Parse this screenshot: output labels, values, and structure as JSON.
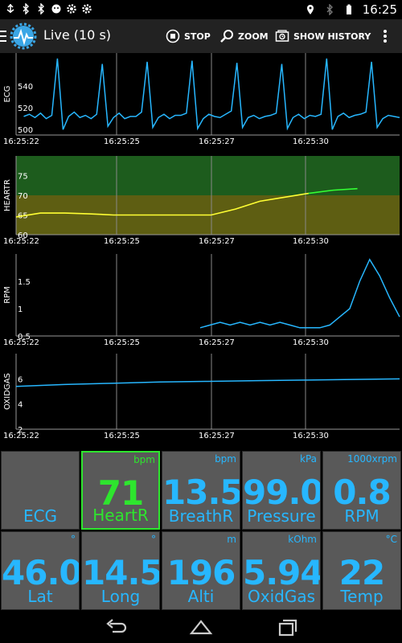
{
  "statusbar": {
    "time": "16:25",
    "icons": [
      "usb-icon",
      "bluetooth-icon",
      "bluetooth-icon",
      "android-icon",
      "gear-icon",
      "gear-icon"
    ],
    "right_icons": [
      "location-icon",
      "bluetooth-icon",
      "battery-icon"
    ]
  },
  "actionbar": {
    "title": "Live (10 s)",
    "stop_label": "STOP",
    "zoom_label": "ZOOM",
    "history_label": "SHOW HISTORY"
  },
  "colors": {
    "trace_blue": "#27b7ff",
    "trace_yellow": "#ffff33",
    "trace_green": "#33ff33",
    "zone_green": "#1d5c1d",
    "zone_olive": "#5e5e12",
    "tile_bg": "#595959",
    "tile_text": "#27b7ff",
    "tile_active": "#2ee52e"
  },
  "chart_data": [
    {
      "type": "line",
      "ylabel": "ECG",
      "ylim": [
        495,
        570
      ],
      "yticks": [
        "500",
        "520",
        "540"
      ],
      "xticks": [
        "16:25:22",
        "16:25:25",
        "16:25:27",
        "16:25:30"
      ],
      "series": [
        {
          "values": [
            512,
            514,
            511,
            515,
            510,
            513,
            565,
            500,
            512,
            516,
            511,
            513,
            510,
            514,
            560,
            503,
            511,
            515,
            510,
            512,
            512,
            516,
            562,
            502,
            511,
            514,
            510,
            513,
            513,
            515,
            563,
            501,
            510,
            514,
            512,
            511,
            514,
            517,
            561,
            502,
            511,
            513,
            510,
            512,
            513,
            515,
            560,
            501,
            511,
            514,
            510,
            513,
            512,
            514,
            565,
            500,
            512,
            515,
            511,
            513,
            514,
            516,
            562,
            502,
            510,
            513,
            512,
            511
          ]
        }
      ]
    },
    {
      "type": "line",
      "ylabel": "HEARTR",
      "ylim": [
        60,
        80
      ],
      "yticks": [
        "60",
        "65",
        "70",
        "75"
      ],
      "xticks": [
        "16:25:22",
        "16:25:25",
        "16:25:27",
        "16:25:30"
      ],
      "zones": [
        {
          "from": 70,
          "to": 80,
          "color": "green"
        },
        {
          "from": 60,
          "to": 70,
          "color": "olive"
        }
      ],
      "series": [
        {
          "values": [
            64.5,
            65.5,
            65.5,
            65.3,
            65,
            65,
            65,
            65,
            65,
            66.5,
            68.5,
            69.5,
            70.5,
            71.3,
            71.7
          ]
        }
      ]
    },
    {
      "type": "line",
      "ylabel": "RPM",
      "ylim": [
        0.5,
        2.0
      ],
      "yticks": [
        "0.5",
        "1",
        "1.5"
      ],
      "xticks": [
        "16:25:22",
        "16:25:25",
        "16:25:27",
        "16:25:30"
      ],
      "series": [
        {
          "values": [
            0.65,
            0.7,
            0.75,
            0.7,
            0.75,
            0.7,
            0.75,
            0.7,
            0.75,
            0.7,
            0.65,
            0.65,
            0.65,
            0.7,
            0.85,
            1.0,
            1.5,
            1.9,
            1.6,
            1.2,
            0.85
          ]
        }
      ]
    },
    {
      "type": "line",
      "ylabel": "OXIDGAS",
      "ylim": [
        2,
        8
      ],
      "yticks": [
        "2",
        "4",
        "6"
      ],
      "xticks": [
        "16:25:22",
        "16:25:25",
        "16:25:27",
        "16:25:30"
      ],
      "series": [
        {
          "values": [
            5.4,
            5.55,
            5.65,
            5.75,
            5.8,
            5.85,
            5.9,
            5.95,
            6.0
          ]
        }
      ]
    }
  ],
  "tiles": [
    {
      "unit": "",
      "value": "",
      "label": "ECG",
      "active": false
    },
    {
      "unit": "bpm",
      "value": "71",
      "label": "HeartR",
      "active": true
    },
    {
      "unit": "bpm",
      "value": "13.5",
      "label": "BreathR",
      "active": false
    },
    {
      "unit": "kPa",
      "value": "99.0",
      "label": "Pressure",
      "active": false
    },
    {
      "unit": "1000xrpm",
      "value": "0.8",
      "label": "RPM",
      "active": false
    },
    {
      "unit": "°",
      "value": "46.0",
      "label": "Lat",
      "active": false
    },
    {
      "unit": "°",
      "value": "14.5",
      "label": "Long",
      "active": false
    },
    {
      "unit": "m",
      "value": "196",
      "label": "Alti",
      "active": false
    },
    {
      "unit": "kOhm",
      "value": "5.94",
      "label": "OxidGas",
      "active": false
    },
    {
      "unit": "°C",
      "value": "22",
      "label": "Temp",
      "active": false
    }
  ]
}
